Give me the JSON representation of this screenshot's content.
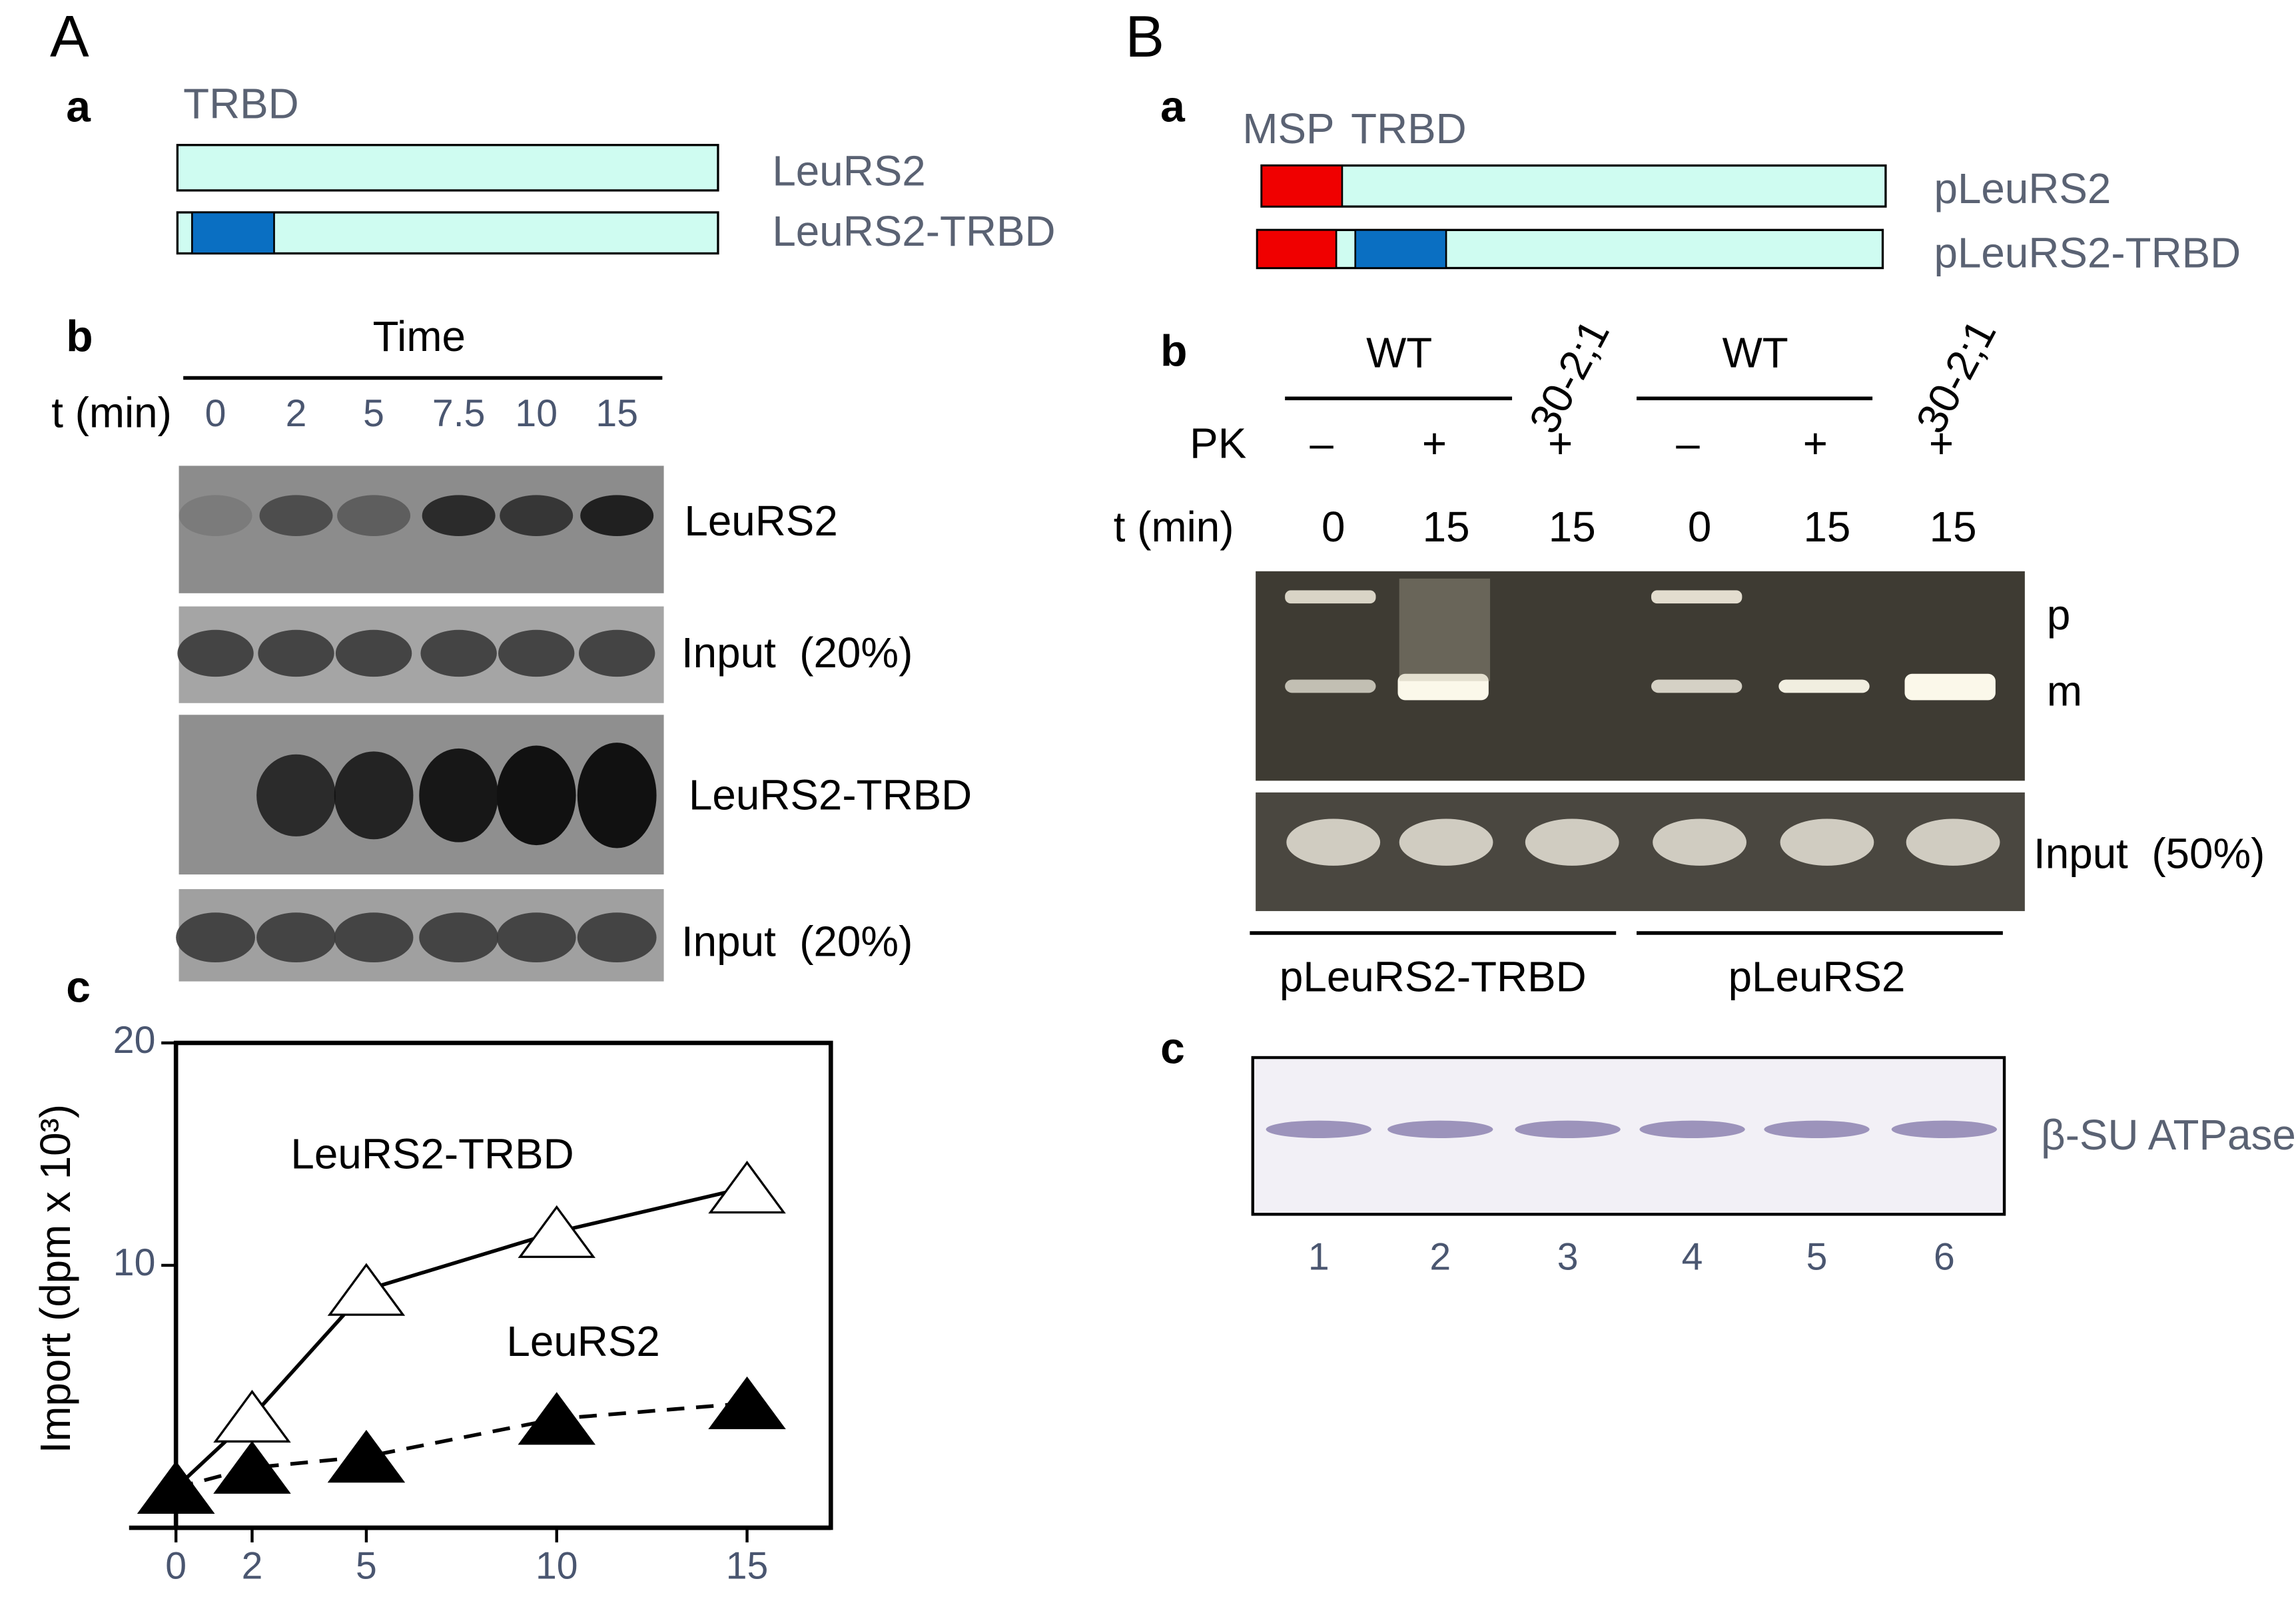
{
  "panel_a": {
    "label": "A",
    "a": {
      "label": "a",
      "domain": "TRBD",
      "constructs": [
        "LeuRS2",
        "LeuRS2-TRBD"
      ]
    },
    "b": {
      "label": "b",
      "header": "Time",
      "time_label": "t (min)",
      "times": [
        "0",
        "2",
        "5",
        "7.5",
        "10",
        "15"
      ],
      "gels": [
        "LeuRS2",
        "Input  (20%)",
        "LeuRS2-TRBD",
        "Input  (20%)"
      ]
    },
    "c": {
      "label": "c"
    }
  },
  "panel_b": {
    "label": "B",
    "a": {
      "label": "a",
      "domains": [
        "MSP",
        "TRBD"
      ],
      "constructs": [
        "pLeuRS2",
        "pLeuRS2-TRBD"
      ]
    },
    "b": {
      "label": "b",
      "strains": [
        "WT",
        "30-2;1",
        "WT",
        "30-2;1"
      ],
      "pk_label": "PK",
      "pk": [
        "–",
        "+",
        "+",
        "–",
        "+",
        "+"
      ],
      "time_label": "t (min)",
      "times": [
        "0",
        "15",
        "15",
        "0",
        "15",
        "15"
      ],
      "bands": [
        "p",
        "m"
      ],
      "input": "Input  (50%)",
      "groups": [
        "pLeuRS2-TRBD",
        "pLeuRS2"
      ]
    },
    "c": {
      "label": "c",
      "protein": "β-SU ATPase",
      "lanes": [
        "1",
        "2",
        "3",
        "4",
        "5",
        "6"
      ]
    }
  },
  "chart_data": {
    "type": "line",
    "y_label": "Import (dpm x 10³)",
    "x": [
      0,
      2,
      5,
      10,
      15
    ],
    "series": [
      {
        "name": "LeuRS2-TRBD",
        "color": "#000000",
        "marker": "open-triangle",
        "line": "solid",
        "values": [
          0,
          3.2,
          8.9,
          11.5,
          13.5
        ]
      },
      {
        "name": "LeuRS2",
        "color": "#000000",
        "marker": "filled-triangle",
        "line": "dashed",
        "values": [
          0,
          0.9,
          1.4,
          3.1,
          3.8
        ]
      }
    ],
    "xlim": [
      0,
      17.2
    ],
    "ylim": [
      -1.8,
      20
    ],
    "xticks": [
      0,
      2,
      5,
      10,
      15
    ],
    "yticks": [
      10,
      20
    ]
  }
}
